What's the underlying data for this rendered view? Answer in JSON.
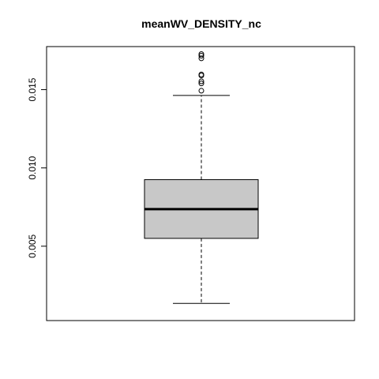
{
  "chart_data": {
    "type": "boxplot",
    "title": "meanWV_DENSITY_nc",
    "xlabel": "",
    "ylabel": "",
    "ylim": [
      0.00025,
      0.01775
    ],
    "yticks": [
      0.005,
      0.01,
      0.015
    ],
    "ytick_labels": [
      "0.005",
      "0.010",
      "0.015"
    ],
    "box": {
      "whisker_low": 0.00135,
      "q1": 0.0055,
      "median": 0.00737,
      "q3": 0.00925,
      "whisker_high": 0.01463
    },
    "outliers": [
      0.01493,
      0.0154,
      0.01553,
      0.0159,
      0.01597,
      0.017,
      0.01717,
      0.01727
    ],
    "box_fill": "#c8c8c8",
    "grid": false
  }
}
